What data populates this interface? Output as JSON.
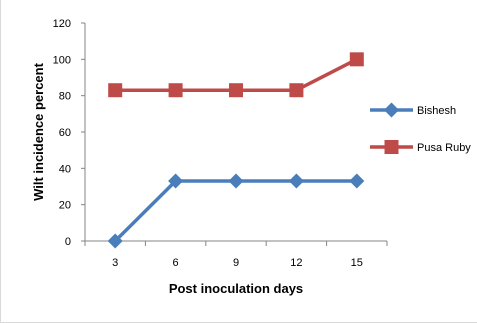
{
  "chart_data": {
    "type": "line",
    "title": "",
    "xlabel": "Post inoculation days",
    "ylabel": "Wilt incidence percent",
    "categories": [
      "3",
      "6",
      "9",
      "12",
      "15"
    ],
    "ylim": [
      0,
      120
    ],
    "yticks": [
      0,
      20,
      40,
      60,
      80,
      100,
      120
    ],
    "grid": false,
    "legend_position": "right",
    "series": [
      {
        "name": "Bishesh",
        "values": [
          0,
          33,
          33,
          33,
          33
        ],
        "color": "#4a7ebb",
        "marker": "diamond"
      },
      {
        "name": "Pusa Ruby",
        "values": [
          83,
          83,
          83,
          83,
          100
        ],
        "color": "#be4b48",
        "marker": "square"
      }
    ]
  }
}
